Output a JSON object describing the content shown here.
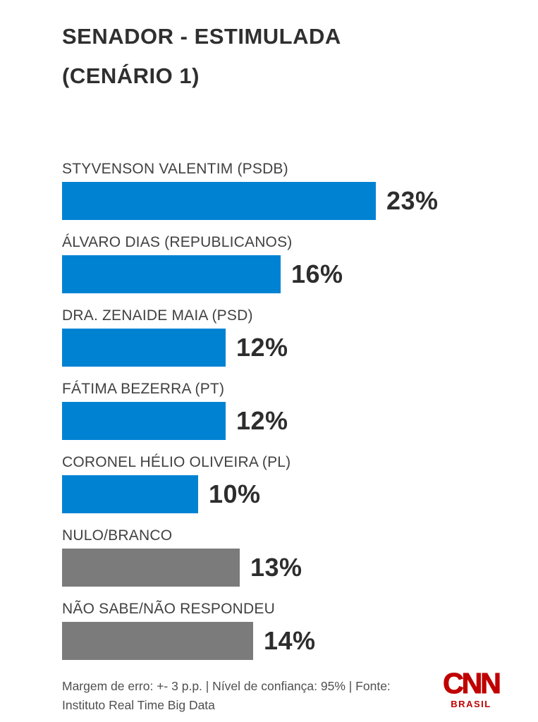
{
  "title": {
    "line1": "SENADOR - ESTIMULADA",
    "line2": "(CENÁRIO 1)"
  },
  "chart_data": {
    "type": "bar",
    "orientation": "horizontal",
    "title": "SENADOR - ESTIMULADA (CENÁRIO 1)",
    "unit": "%",
    "xlim": [
      0,
      23
    ],
    "grid": false,
    "legend": "none",
    "categories": [
      "STYVENSON VALENTIM (PSDB)",
      "ÁLVARO DIAS (REPUBLICANOS)",
      "DRA. ZENAIDE MAIA (PSD)",
      "FÁTIMA BEZERRA (PT)",
      "CORONEL HÉLIO OLIVEIRA (PL)",
      "NULO/BRANCO",
      "NÃO SABE/NÃO RESPONDEU"
    ],
    "values": [
      23,
      16,
      12,
      12,
      10,
      13,
      14
    ],
    "colors": {
      "blue": "#0082d3",
      "gray": "#7b7b7b"
    },
    "rows": [
      {
        "label": "STYVENSON VALENTIM (PSDB)",
        "value": 23,
        "value_label": "23%",
        "color": "blue"
      },
      {
        "label": "ÁLVARO DIAS (REPUBLICANOS)",
        "value": 16,
        "value_label": "16%",
        "color": "blue"
      },
      {
        "label": "DRA. ZENAIDE MAIA (PSD)",
        "value": 12,
        "value_label": "12%",
        "color": "blue"
      },
      {
        "label": "FÁTIMA BEZERRA (PT)",
        "value": 12,
        "value_label": "12%",
        "color": "blue"
      },
      {
        "label": "CORONEL HÉLIO OLIVEIRA (PL)",
        "value": 10,
        "value_label": "10%",
        "color": "blue"
      },
      {
        "label": "NULO/BRANCO",
        "value": 13,
        "value_label": "13%",
        "color": "gray"
      },
      {
        "label": "NÃO SABE/NÃO RESPONDEU",
        "value": 14,
        "value_label": "14%",
        "color": "gray"
      }
    ]
  },
  "footer": {
    "line1": "Margem de erro: +- 3 p.p. | Nível de confiança: 95% | Fonte:",
    "line2": "Instituto Real Time Big Data"
  },
  "logo": {
    "brand": "CNN",
    "region": "BRASIL",
    "color": "#c00000"
  }
}
